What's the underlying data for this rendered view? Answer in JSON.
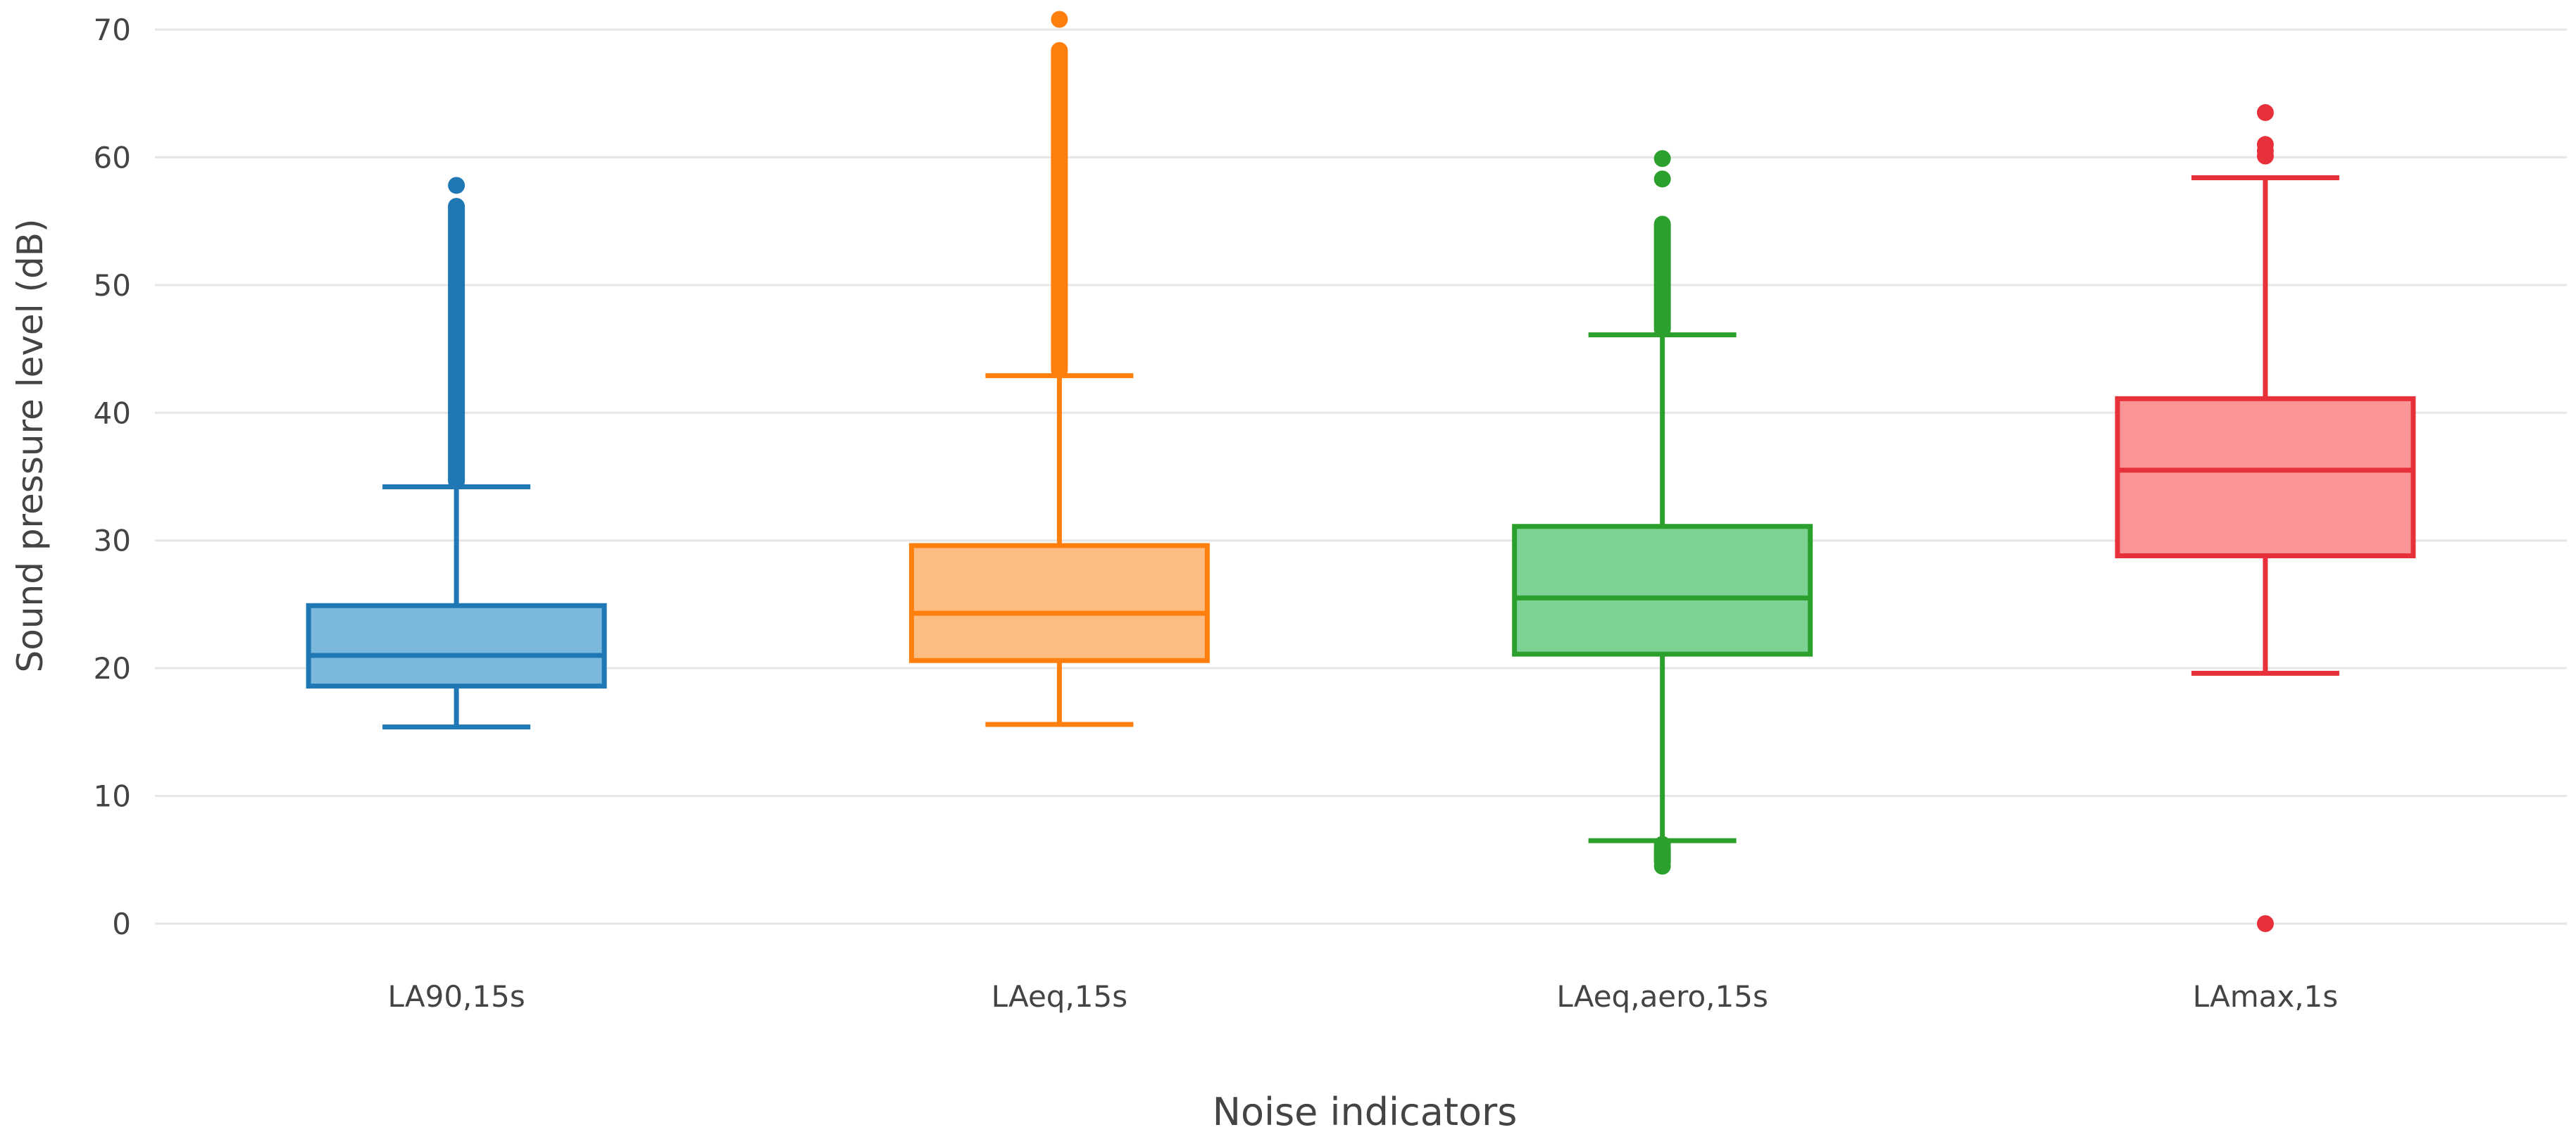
{
  "chart_data": {
    "type": "box",
    "xlabel": "Noise indicators",
    "ylabel": "Sound pressure level (dB)",
    "ylim": [
      0,
      70
    ],
    "yticks": [
      0,
      10,
      20,
      30,
      40,
      50,
      60,
      70
    ],
    "grid": true,
    "categories": [
      "LA90,15s",
      "LAeq,15s",
      "LAeq,aero,15s",
      "LAmax,1s"
    ],
    "series": [
      {
        "category": "LA90,15s",
        "color": "#1f77b4",
        "fill": "#7ab8dc",
        "whisker_low": 15.4,
        "q1": 18.6,
        "median": 21.0,
        "q3": 24.9,
        "whisker_high": 34.2,
        "outliers_range": [
          34.2,
          56.6
        ],
        "outliers": [
          57.8
        ]
      },
      {
        "category": "LAeq,15s",
        "color": "#ff7f0e",
        "fill": "#fdbd82",
        "whisker_low": 15.6,
        "q1": 20.6,
        "median": 24.3,
        "q3": 29.6,
        "whisker_high": 42.9,
        "outliers_range": [
          42.9,
          68.8
        ],
        "outliers": [
          70.8
        ]
      },
      {
        "category": "LAeq,aero,15s",
        "color": "#2ca02c",
        "fill": "#7dd296",
        "whisker_low": 6.5,
        "q1": 21.1,
        "median": 25.5,
        "q3": 31.1,
        "whisker_high": 46.1,
        "outliers_range": [
          46.1,
          55.2
        ],
        "outliers": [
          58.3,
          59.9,
          6.2,
          5.6,
          5.0,
          4.5
        ],
        "low_outliers_range": [
          4.4,
          6.4
        ]
      },
      {
        "category": "LAmax,1s",
        "color": "#e8303a",
        "fill": "#f99596",
        "whisker_low": 19.6,
        "q1": 28.8,
        "median": 35.5,
        "q3": 41.1,
        "whisker_high": 58.4,
        "outliers": [
          60.1,
          60.5,
          61.0,
          63.5,
          0.0
        ]
      }
    ]
  }
}
